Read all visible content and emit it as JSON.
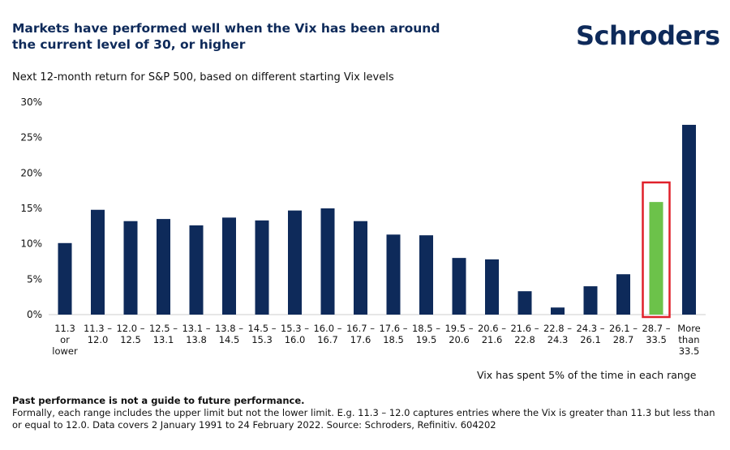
{
  "title": "Markets have performed well when the Vix has been around the current level of 30, or higher",
  "logo": "Schroders",
  "subtitle": "Next 12-month return for S&P 500, based on different starting Vix levels",
  "note": "Vix has spent 5% of the time in each range",
  "footer": {
    "bold": "Past performance is not a guide to future performance.",
    "text": "Formally, each range includes the upper limit but not the lower limit. E.g. 11.3 – 12.0 captures entries where the Vix is greater than 11.3 but less than or equal to 12.0. Data covers 2 January 1991 to 24 February 2022. Source: Schroders, Refinitiv. 604202"
  },
  "colors": {
    "bar": "#0e2a5a",
    "highlight": "#6cc24a",
    "highlight_box": "#e0202a"
  },
  "chart_data": {
    "type": "bar",
    "categories": [
      "11.3 or lower",
      "11.3 – 12.0",
      "12.0 – 12.5",
      "12.5 – 13.1",
      "13.1– 13.8",
      "13.8 – 14.5",
      "14.5 – 15.3",
      "15.3 – 16.0",
      "16.0 – 16.7",
      "16.7 – 17.6",
      "17.6 – 18.5",
      "18.5 – 19.5",
      "19.5 – 20.6",
      "20.6 – 21.6",
      "21.6 – 22.8",
      "22.8 – 24.3",
      "24.3 – 26.1",
      "26.1 – 28.7",
      "28.7 – 33.5",
      "More than 33.5"
    ],
    "values": [
      10.1,
      14.8,
      13.2,
      13.5,
      12.6,
      13.7,
      13.3,
      14.7,
      15.0,
      13.2,
      11.3,
      11.2,
      8.0,
      7.8,
      3.3,
      1.0,
      4.0,
      5.7,
      15.9,
      26.8
    ],
    "highlight_index": 18,
    "yticks": [
      "0%",
      "5%",
      "10%",
      "15%",
      "20%",
      "25%",
      "30%"
    ],
    "ylim": [
      0,
      30
    ],
    "grid": false
  }
}
